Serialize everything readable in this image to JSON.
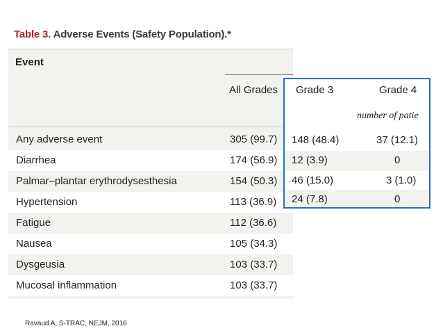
{
  "table": {
    "label": "Table 3.",
    "title": "Adverse Events (Safety Population).*",
    "event_header": "Event",
    "all_grades_header": "All Grades",
    "rows": [
      {
        "event": "Any adverse event",
        "all_grades": "305 (99.7)"
      },
      {
        "event": "Diarrhea",
        "all_grades": "174 (56.9)"
      },
      {
        "event": "Palmar–plantar erythrodysesthesia",
        "all_grades": "154 (50.3)"
      },
      {
        "event": "Hypertension",
        "all_grades": "113 (36.9)"
      },
      {
        "event": "Fatigue",
        "all_grades": "112 (36.6)"
      },
      {
        "event": "Nausea",
        "all_grades": "105 (34.3)"
      },
      {
        "event": "Dysgeusia",
        "all_grades": "103 (33.7)"
      },
      {
        "event": "Mucosal inflammation",
        "all_grades": "103 (33.7)"
      }
    ]
  },
  "highlight": {
    "grade3_header": "Grade 3",
    "grade4_header": "Grade 4",
    "unit_label": "number of patie",
    "rows": [
      {
        "grade3": "148 (48.4)",
        "grade4": "37 (12.1)"
      },
      {
        "grade3": "12 (3.9)",
        "grade4": "0"
      },
      {
        "grade3": "46 (15.0)",
        "grade4": "3 (1.0)"
      },
      {
        "grade3": "24 (7.8)",
        "grade4": "0"
      }
    ],
    "border_color": "#2e6dc2"
  },
  "citation": "Ravaud A, S-TRAC, NEJM, 2016",
  "colors": {
    "title_label": "#b22222",
    "table_bg": "#f2f2ef"
  }
}
